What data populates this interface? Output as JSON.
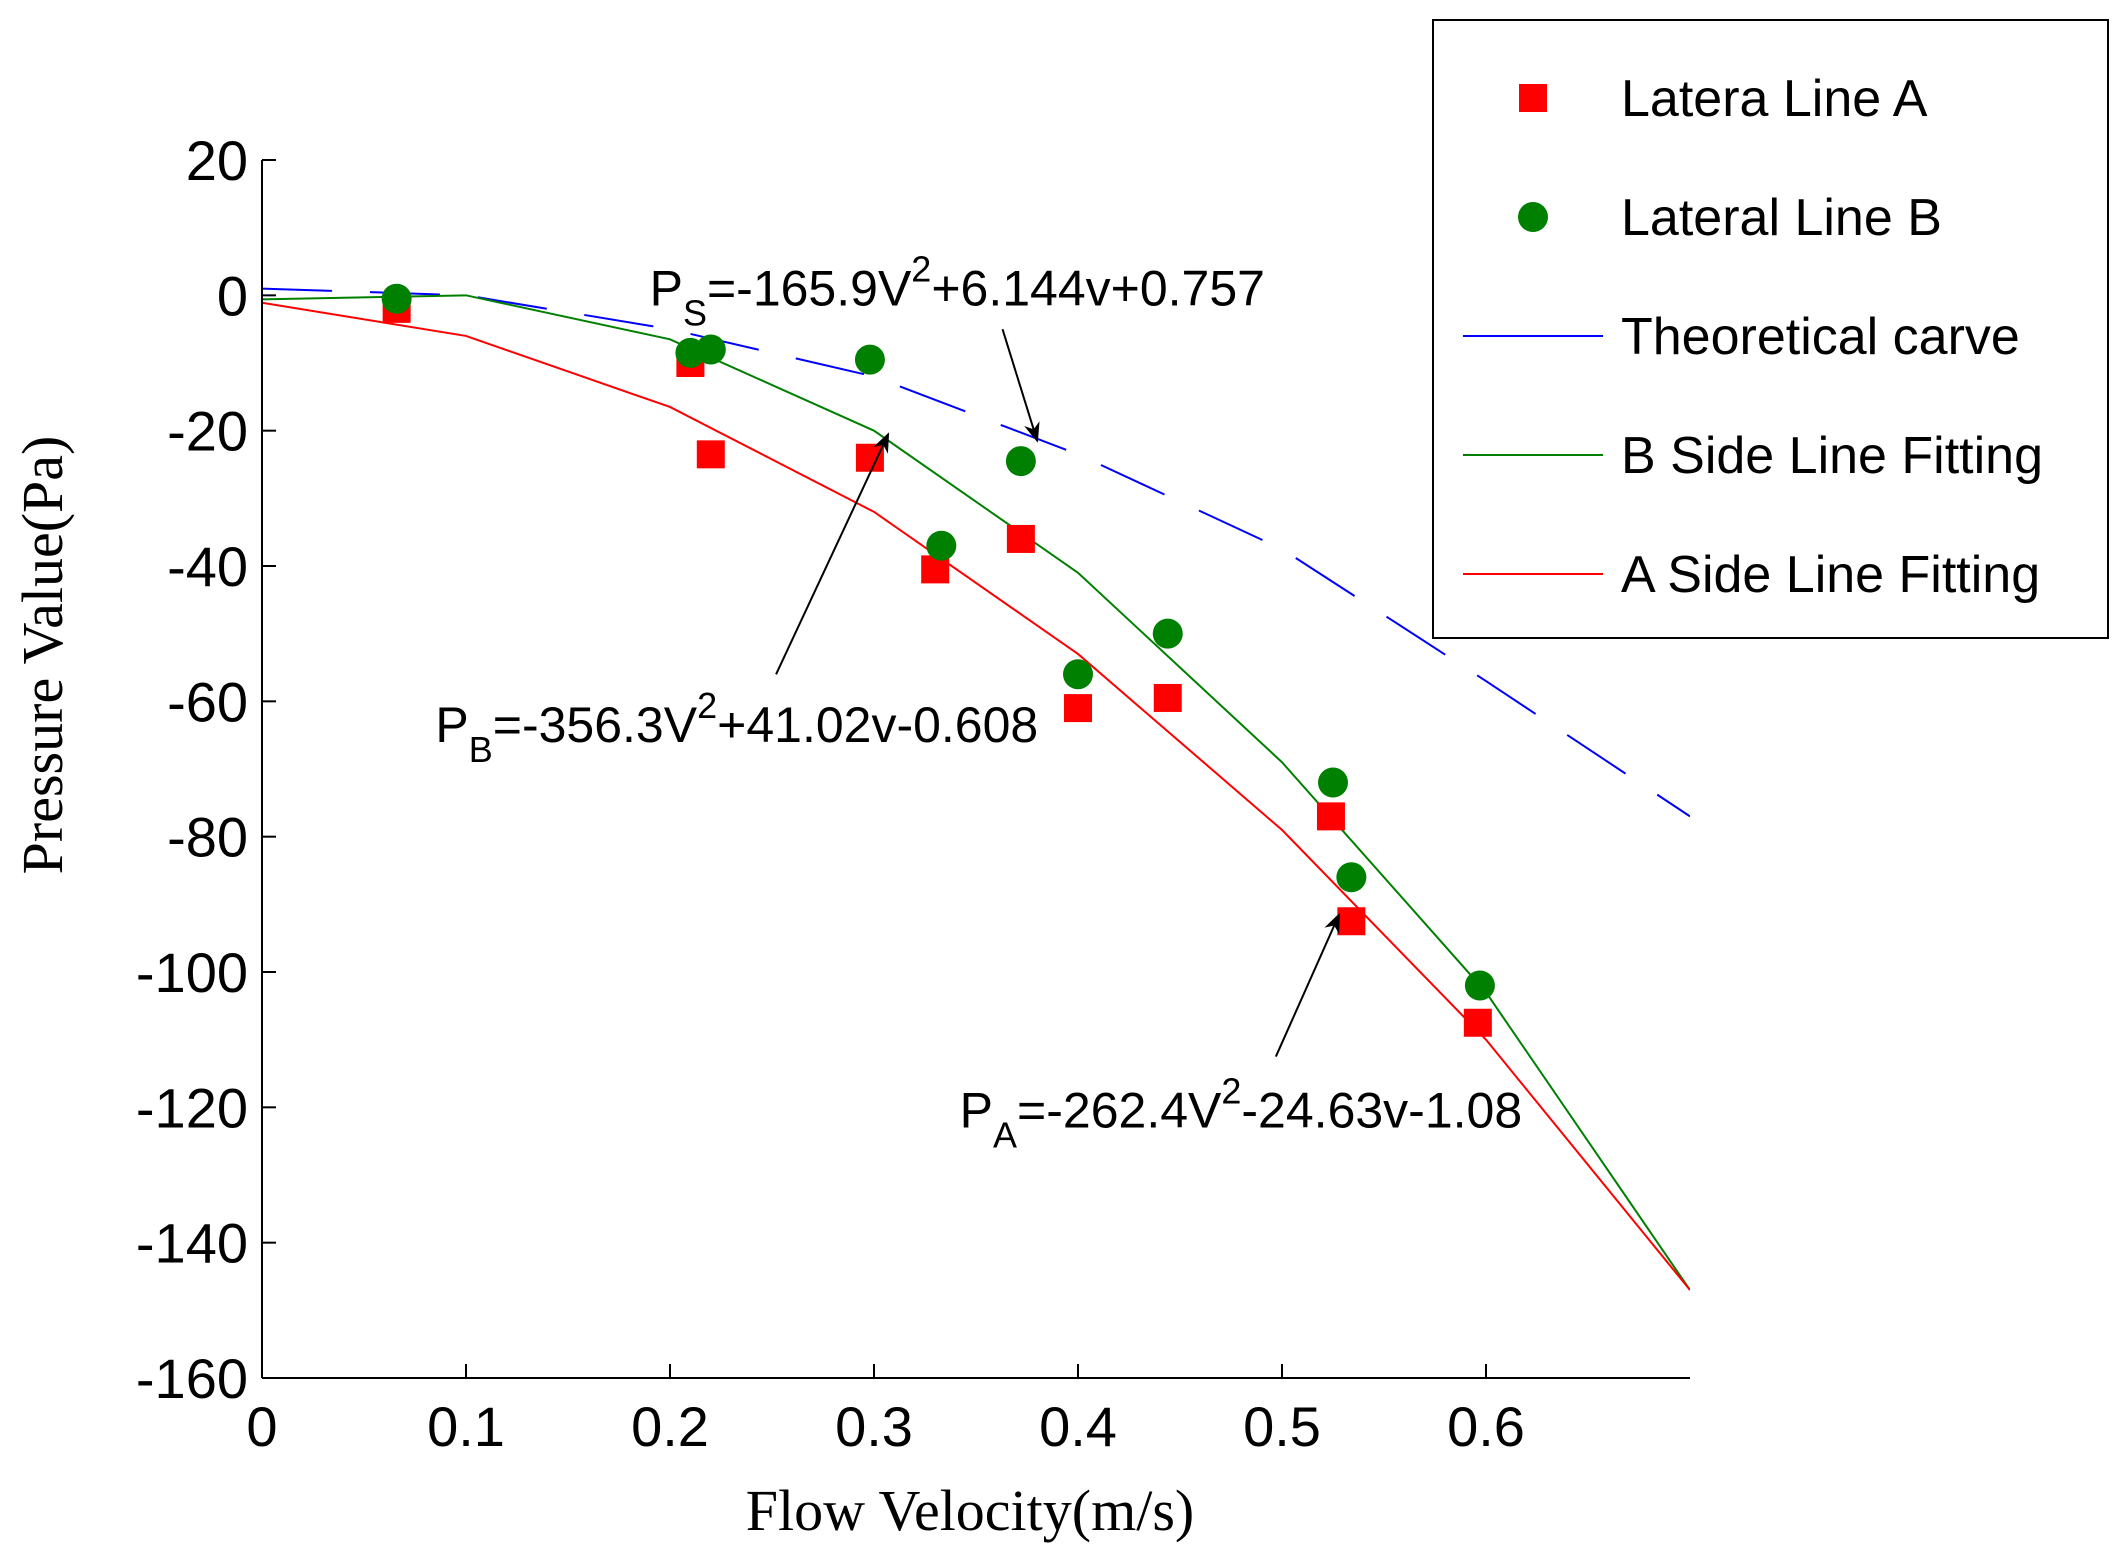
{
  "chart_data": {
    "type": "scatter",
    "title": "",
    "xlabel": "Flow Velocity(m/s)",
    "ylabel": "Pressure Value(Pa)",
    "xlim": [
      0,
      0.7
    ],
    "ylim": [
      -160,
      20
    ],
    "xticks": [
      0,
      0.1,
      0.2,
      0.3,
      0.4,
      0.5,
      0.6
    ],
    "xtick_labels": [
      "0",
      "0.1",
      "0.2",
      "0.3",
      "0.4",
      "0.5",
      "0.6"
    ],
    "yticks": [
      20,
      0,
      -20,
      -40,
      -60,
      -80,
      -100,
      -120,
      -140,
      -160
    ],
    "ytick_labels": [
      "20",
      "0",
      "-20",
      "-40",
      "-60",
      "-80",
      "-100",
      "-120",
      "-140",
      "-160"
    ],
    "grid": false,
    "legend_position": "top-right",
    "series": [
      {
        "name": "Latera Line A",
        "kind": "marker-square",
        "color": "#ff0000",
        "points": [
          [
            0.066,
            -2
          ],
          [
            0.21,
            -10
          ],
          [
            0.22,
            -23.5
          ],
          [
            0.298,
            -24
          ],
          [
            0.33,
            -40.5
          ],
          [
            0.372,
            -36
          ],
          [
            0.4,
            -61
          ],
          [
            0.444,
            -59.5
          ],
          [
            0.524,
            -77
          ],
          [
            0.534,
            -92.5
          ],
          [
            0.596,
            -107.5
          ]
        ]
      },
      {
        "name": "Lateral Line B",
        "kind": "marker-circle",
        "color": "#008000",
        "points": [
          [
            0.066,
            -0.5
          ],
          [
            0.21,
            -8.5
          ],
          [
            0.22,
            -8
          ],
          [
            0.298,
            -9.5
          ],
          [
            0.333,
            -37
          ],
          [
            0.372,
            -24.5
          ],
          [
            0.4,
            -56
          ],
          [
            0.444,
            -50
          ],
          [
            0.525,
            -72
          ],
          [
            0.534,
            -86
          ],
          [
            0.597,
            -102
          ]
        ]
      },
      {
        "name": "Theoretical carve",
        "kind": "dashed-line",
        "color": "#0000ff",
        "x": [
          0,
          0.1,
          0.2,
          0.3,
          0.4,
          0.5,
          0.6,
          0.7
        ],
        "y": [
          1,
          0,
          -5,
          -12,
          -23.5,
          -37.5,
          -57,
          -77
        ]
      },
      {
        "name": "B Side Line Fitting",
        "kind": "line",
        "color": "#008000",
        "x": [
          0,
          0.1,
          0.2,
          0.3,
          0.4,
          0.5,
          0.6,
          0.7
        ],
        "y": [
          -0.6,
          0,
          -6.5,
          -20,
          -41,
          -69,
          -103,
          -147
        ]
      },
      {
        "name": "A Side Line Fitting",
        "kind": "line",
        "color": "#ff0000",
        "x": [
          0,
          0.1,
          0.2,
          0.3,
          0.4,
          0.5,
          0.6,
          0.7
        ],
        "y": [
          -1.1,
          -6,
          -16.5,
          -32,
          -53,
          -79,
          -110,
          -147
        ]
      }
    ],
    "annotations": [
      {
        "name": "PS",
        "prefix": "P",
        "subscript": "S",
        "mid": "=-165.9V",
        "superscript": "2",
        "suffix": "+6.144v+0.757",
        "text_at": [
          0.19,
          -1.5
        ],
        "arrow_from": [
          0.363,
          -5
        ],
        "arrow_to": [
          0.38,
          -21.5
        ]
      },
      {
        "name": "PB",
        "prefix": "P",
        "subscript": "B",
        "mid": "=-356.3V",
        "superscript": "2",
        "suffix": "+41.02v-0.608",
        "text_at": [
          0.085,
          -66
        ],
        "arrow_from": [
          0.252,
          -56
        ],
        "arrow_to": [
          0.307,
          -20.5
        ]
      },
      {
        "name": "PA",
        "prefix": "P",
        "subscript": "A",
        "mid": "=-262.4V",
        "superscript": "2",
        "suffix": "-24.63v-1.08",
        "text_at": [
          0.342,
          -123
        ],
        "arrow_from": [
          0.497,
          -112.5
        ],
        "arrow_to": [
          0.528,
          -91.5
        ]
      }
    ]
  }
}
